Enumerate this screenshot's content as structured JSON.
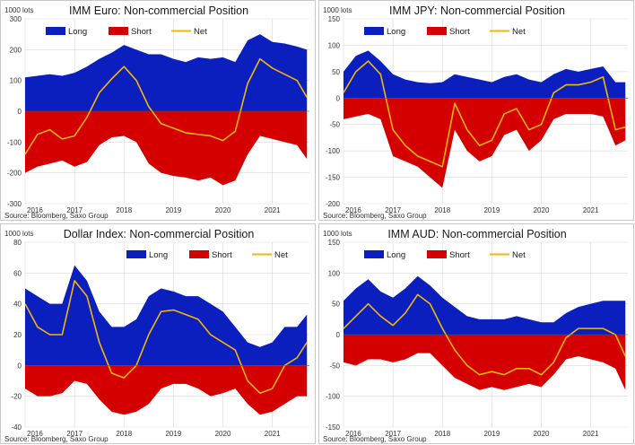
{
  "colors": {
    "long": "#0b1fbf",
    "short": "#d40000",
    "net": "#f2b705",
    "grid": "#d9d9d9"
  },
  "chart_data": [
    {
      "type": "area",
      "title": "IMM Euro: Non-commercial Position",
      "unit": "1000 lots",
      "source": "Source: Bloomberg, Saxo Group",
      "ylim": [
        -300,
        300
      ],
      "yticks": [
        300,
        200,
        100,
        0,
        -100,
        -200,
        -300
      ],
      "xlim": [
        2016.0,
        2021.75
      ],
      "xticks": [
        "2016",
        "2017",
        "2018",
        "2019",
        "2020",
        "2021"
      ],
      "legend": [
        "Long",
        "Short",
        "Net"
      ],
      "legend_position": "top-left",
      "series": [
        {
          "name": "Long",
          "x": [
            2016.0,
            2016.25,
            2016.5,
            2016.75,
            2017.0,
            2017.25,
            2017.5,
            2017.75,
            2018.0,
            2018.25,
            2018.5,
            2018.75,
            2019.0,
            2019.25,
            2019.5,
            2019.75,
            2020.0,
            2020.25,
            2020.5,
            2020.75,
            2021.0,
            2021.25,
            2021.5,
            2021.7
          ],
          "values": [
            110,
            115,
            120,
            115,
            125,
            145,
            170,
            190,
            215,
            200,
            185,
            185,
            170,
            160,
            175,
            170,
            175,
            160,
            230,
            250,
            225,
            220,
            210,
            200
          ]
        },
        {
          "name": "Short",
          "x": [
            2016.0,
            2016.25,
            2016.5,
            2016.75,
            2017.0,
            2017.25,
            2017.5,
            2017.75,
            2018.0,
            2018.25,
            2018.5,
            2018.75,
            2019.0,
            2019.25,
            2019.5,
            2019.75,
            2020.0,
            2020.25,
            2020.5,
            2020.75,
            2021.0,
            2021.25,
            2021.5,
            2021.7
          ],
          "values": [
            -200,
            -180,
            -170,
            -160,
            -180,
            -165,
            -110,
            -85,
            -80,
            -100,
            -170,
            -200,
            -210,
            -215,
            -225,
            -215,
            -240,
            -225,
            -140,
            -80,
            -90,
            -100,
            -110,
            -155
          ]
        },
        {
          "name": "Net",
          "x": [
            2016.0,
            2016.25,
            2016.5,
            2016.75,
            2017.0,
            2017.25,
            2017.5,
            2017.75,
            2018.0,
            2018.25,
            2018.5,
            2018.75,
            2019.0,
            2019.25,
            2019.5,
            2019.75,
            2020.0,
            2020.25,
            2020.5,
            2020.75,
            2021.0,
            2021.25,
            2021.5,
            2021.7
          ],
          "values": [
            -140,
            -75,
            -60,
            -90,
            -80,
            -20,
            60,
            105,
            145,
            100,
            15,
            -40,
            -55,
            -70,
            -75,
            -80,
            -95,
            -65,
            90,
            170,
            140,
            120,
            100,
            45
          ]
        }
      ]
    },
    {
      "type": "area",
      "title": "IMM JPY: Non-commercial Position",
      "unit": "1000 lots",
      "source": "Source: Bloomberg, Saxo Group",
      "ylim": [
        -200,
        150
      ],
      "yticks": [
        150,
        100,
        50,
        0,
        -50,
        -100,
        -150,
        -200
      ],
      "xlim": [
        2016.0,
        2021.75
      ],
      "xticks": [
        "2016",
        "2017",
        "2018",
        "2019",
        "2020",
        "2021"
      ],
      "legend": [
        "Long",
        "Short",
        "Net"
      ],
      "legend_position": "top-left",
      "series": [
        {
          "name": "Long",
          "x": [
            2016.0,
            2016.25,
            2016.5,
            2016.75,
            2017.0,
            2017.25,
            2017.5,
            2017.75,
            2018.0,
            2018.25,
            2018.5,
            2018.75,
            2019.0,
            2019.25,
            2019.5,
            2019.75,
            2020.0,
            2020.25,
            2020.5,
            2020.75,
            2021.0,
            2021.25,
            2021.5,
            2021.7
          ],
          "values": [
            50,
            80,
            90,
            70,
            45,
            35,
            30,
            28,
            30,
            45,
            40,
            35,
            30,
            40,
            45,
            35,
            30,
            45,
            55,
            50,
            55,
            60,
            30,
            30
          ]
        },
        {
          "name": "Short",
          "x": [
            2016.0,
            2016.25,
            2016.5,
            2016.75,
            2017.0,
            2017.25,
            2017.5,
            2017.75,
            2018.0,
            2018.25,
            2018.5,
            2018.75,
            2019.0,
            2019.25,
            2019.5,
            2019.75,
            2020.0,
            2020.25,
            2020.5,
            2020.75,
            2021.0,
            2021.25,
            2021.5,
            2021.7
          ],
          "values": [
            -40,
            -35,
            -30,
            -40,
            -110,
            -120,
            -130,
            -150,
            -170,
            -60,
            -100,
            -120,
            -110,
            -70,
            -60,
            -100,
            -80,
            -40,
            -30,
            -30,
            -30,
            -35,
            -90,
            -80
          ]
        },
        {
          "name": "Net",
          "x": [
            2016.0,
            2016.25,
            2016.5,
            2016.75,
            2017.0,
            2017.25,
            2017.5,
            2017.75,
            2018.0,
            2018.25,
            2018.5,
            2018.75,
            2019.0,
            2019.25,
            2019.5,
            2019.75,
            2020.0,
            2020.25,
            2020.5,
            2020.75,
            2021.0,
            2021.25,
            2021.5,
            2021.7
          ],
          "values": [
            10,
            50,
            70,
            45,
            -60,
            -90,
            -110,
            -120,
            -130,
            -10,
            -60,
            -90,
            -80,
            -30,
            -20,
            -60,
            -50,
            10,
            25,
            25,
            30,
            40,
            -60,
            -55
          ]
        }
      ]
    },
    {
      "type": "area",
      "title": "Dollar Index: Non-commercial Position",
      "unit": "1000 lots",
      "source": "Source: Bloomberg, Saxo Group",
      "ylim": [
        -40,
        80
      ],
      "yticks": [
        80,
        60,
        40,
        20,
        0,
        -20,
        -40
      ],
      "xlim": [
        2016.0,
        2021.75
      ],
      "xticks": [
        "2016",
        "2017",
        "2018",
        "2019",
        "2020",
        "2021"
      ],
      "legend": [
        "Long",
        "Short",
        "Net"
      ],
      "legend_position": "top-right",
      "series": [
        {
          "name": "Long",
          "x": [
            2016.0,
            2016.25,
            2016.5,
            2016.75,
            2017.0,
            2017.25,
            2017.5,
            2017.75,
            2018.0,
            2018.25,
            2018.5,
            2018.75,
            2019.0,
            2019.25,
            2019.5,
            2019.75,
            2020.0,
            2020.25,
            2020.5,
            2020.75,
            2021.0,
            2021.25,
            2021.5,
            2021.7
          ],
          "values": [
            50,
            45,
            40,
            40,
            65,
            55,
            35,
            25,
            25,
            30,
            45,
            50,
            48,
            45,
            45,
            40,
            35,
            25,
            15,
            12,
            15,
            25,
            25,
            33
          ]
        },
        {
          "name": "Short",
          "x": [
            2016.0,
            2016.25,
            2016.5,
            2016.75,
            2017.0,
            2017.25,
            2017.5,
            2017.75,
            2018.0,
            2018.25,
            2018.5,
            2018.75,
            2019.0,
            2019.25,
            2019.5,
            2019.75,
            2020.0,
            2020.25,
            2020.5,
            2020.75,
            2021.0,
            2021.25,
            2021.5,
            2021.7
          ],
          "values": [
            -15,
            -20,
            -20,
            -18,
            -10,
            -12,
            -22,
            -30,
            -32,
            -30,
            -25,
            -15,
            -12,
            -12,
            -15,
            -20,
            -18,
            -15,
            -25,
            -32,
            -30,
            -25,
            -20,
            -20
          ]
        },
        {
          "name": "Net",
          "x": [
            2016.0,
            2016.25,
            2016.5,
            2016.75,
            2017.0,
            2017.25,
            2017.5,
            2017.75,
            2018.0,
            2018.25,
            2018.5,
            2018.75,
            2019.0,
            2019.25,
            2019.5,
            2019.75,
            2020.0,
            2020.25,
            2020.5,
            2020.75,
            2021.0,
            2021.25,
            2021.5,
            2021.7
          ],
          "values": [
            40,
            25,
            20,
            20,
            55,
            45,
            15,
            -5,
            -8,
            0,
            20,
            35,
            36,
            33,
            30,
            20,
            15,
            10,
            -10,
            -18,
            -15,
            0,
            5,
            15
          ]
        }
      ]
    },
    {
      "type": "area",
      "title": "IMM AUD: Non-commercial Position",
      "unit": "1000 lots",
      "source": "Source: Bloomberg, Saxo Group",
      "ylim": [
        -150,
        150
      ],
      "yticks": [
        150,
        100,
        50,
        0,
        -50,
        -100,
        -150
      ],
      "xlim": [
        2016.0,
        2021.75
      ],
      "xticks": [
        "2016",
        "2017",
        "2018",
        "2019",
        "2020",
        "2021"
      ],
      "legend": [
        "Long",
        "Short",
        "Net"
      ],
      "legend_position": "top-left",
      "series": [
        {
          "name": "Long",
          "x": [
            2016.0,
            2016.25,
            2016.5,
            2016.75,
            2017.0,
            2017.25,
            2017.5,
            2017.75,
            2018.0,
            2018.25,
            2018.5,
            2018.75,
            2019.0,
            2019.25,
            2019.5,
            2019.75,
            2020.0,
            2020.25,
            2020.5,
            2020.75,
            2021.0,
            2021.25,
            2021.5,
            2021.7
          ],
          "values": [
            55,
            75,
            90,
            70,
            60,
            75,
            95,
            80,
            60,
            45,
            30,
            25,
            25,
            25,
            30,
            25,
            20,
            20,
            35,
            45,
            50,
            55,
            55,
            55
          ]
        },
        {
          "name": "Short",
          "x": [
            2016.0,
            2016.25,
            2016.5,
            2016.75,
            2017.0,
            2017.25,
            2017.5,
            2017.75,
            2018.0,
            2018.25,
            2018.5,
            2018.75,
            2019.0,
            2019.25,
            2019.5,
            2019.75,
            2020.0,
            2020.25,
            2020.5,
            2020.75,
            2021.0,
            2021.25,
            2021.5,
            2021.7
          ],
          "values": [
            -45,
            -50,
            -40,
            -40,
            -45,
            -40,
            -30,
            -30,
            -50,
            -70,
            -80,
            -90,
            -85,
            -90,
            -85,
            -80,
            -85,
            -65,
            -40,
            -35,
            -40,
            -45,
            -55,
            -90
          ]
        },
        {
          "name": "Net",
          "x": [
            2016.0,
            2016.25,
            2016.5,
            2016.75,
            2017.0,
            2017.25,
            2017.5,
            2017.75,
            2018.0,
            2018.25,
            2018.5,
            2018.75,
            2019.0,
            2019.25,
            2019.5,
            2019.75,
            2020.0,
            2020.25,
            2020.5,
            2020.75,
            2021.0,
            2021.25,
            2021.5,
            2021.7
          ],
          "values": [
            10,
            30,
            50,
            30,
            15,
            35,
            65,
            50,
            10,
            -25,
            -50,
            -65,
            -60,
            -65,
            -55,
            -55,
            -65,
            -45,
            -5,
            10,
            10,
            10,
            0,
            -35
          ]
        }
      ]
    }
  ]
}
